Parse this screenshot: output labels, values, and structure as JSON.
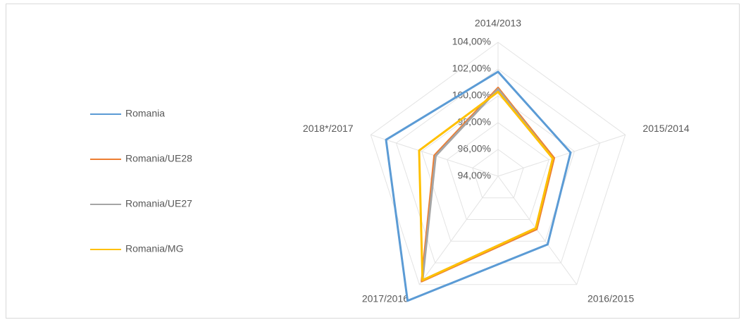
{
  "chart_data": {
    "type": "radar",
    "categories": [
      "2014/2013",
      "2015/2014",
      "2016/2015",
      "2017/2016",
      "2018*/2017"
    ],
    "series": [
      {
        "name": "Romania",
        "color": "#5b9bd5",
        "values": [
          101.8,
          99.7,
          100.3,
          105.5,
          102.8
        ]
      },
      {
        "name": "Romania/UE28",
        "color": "#ed7d31",
        "values": [
          100.6,
          98.4,
          98.9,
          103.7,
          99.0
        ]
      },
      {
        "name": "Romania/UE27",
        "color": "#a5a5a5",
        "values": [
          100.5,
          98.3,
          98.8,
          103.6,
          98.9
        ]
      },
      {
        "name": "Romania/MG",
        "color": "#ffc000",
        "values": [
          100.3,
          98.3,
          98.8,
          103.6,
          100.2
        ]
      }
    ],
    "ylim": [
      94,
      104
    ],
    "yticks": [
      {
        "value": 94,
        "label": "94,00%"
      },
      {
        "value": 96,
        "label": "96,00%"
      },
      {
        "value": 98,
        "label": "98,00%"
      },
      {
        "value": 100,
        "label": "100,00%"
      },
      {
        "value": 102,
        "label": "102,00%"
      },
      {
        "value": 104,
        "label": "104,00%"
      }
    ],
    "grid": true,
    "legend": "left"
  }
}
